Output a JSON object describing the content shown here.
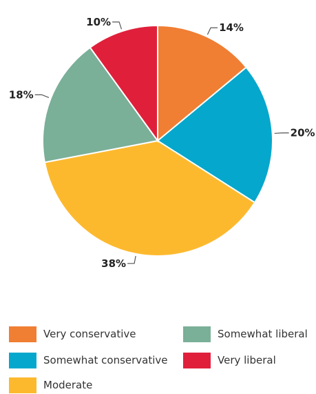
{
  "chart_data": {
    "type": "pie",
    "categories": [
      "Very conservative",
      "Somewhat conservative",
      "Moderate",
      "Somewhat liberal",
      "Very liberal"
    ],
    "values": [
      14,
      20,
      38,
      18,
      10
    ],
    "labels": [
      "14%",
      "20%",
      "38%",
      "18%",
      "10%"
    ],
    "colors": [
      "#f07e33",
      "#06a7cc",
      "#fdb92e",
      "#7aaf98",
      "#e0203b"
    ],
    "start_angle": "12 o'clock, clockwise",
    "legend_position": "bottom"
  },
  "legend": {
    "items": [
      {
        "label": "Very conservative",
        "color": "#f07e33"
      },
      {
        "label": "Somewhat conservative",
        "color": "#06a7cc"
      },
      {
        "label": "Moderate",
        "color": "#fdb92e"
      },
      {
        "label": "Somewhat liberal",
        "color": "#7aaf98"
      },
      {
        "label": "Very liberal",
        "color": "#e0203b"
      }
    ]
  }
}
